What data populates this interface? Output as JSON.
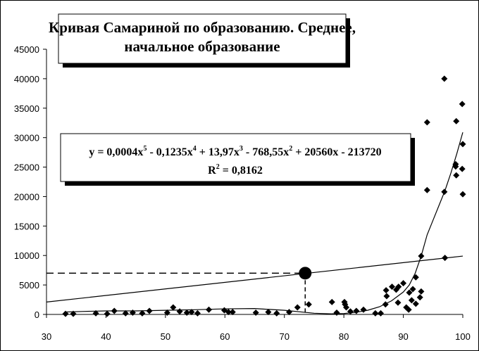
{
  "chart_data": {
    "type": "scatter",
    "title": [
      "Кривая Самариной по образованию. Среднее,",
      "начальное образование"
    ],
    "equation": [
      "y = 0,0004x",
      "5",
      " - 0,1235x",
      "4",
      " + 13,97x",
      "3",
      " - 768,55x",
      "2",
      " + 20560x - 213720"
    ],
    "r2": [
      "R",
      "2",
      " = 0,8162"
    ],
    "xlim": [
      30,
      100
    ],
    "xticks": [
      30,
      40,
      50,
      60,
      70,
      80,
      90,
      100
    ],
    "ylim": [
      0,
      45000
    ],
    "yticks": [
      0,
      5000,
      10000,
      15000,
      20000,
      25000,
      30000,
      35000,
      40000,
      45000
    ],
    "series": [
      {
        "type": "scatter",
        "color": "#000000",
        "x": [
          33.2,
          34.5,
          38.3,
          40.2,
          41.4,
          43.3,
          44.5,
          46.1,
          47.3,
          50.3,
          51.3,
          52.4,
          53.6,
          54.4,
          55.4,
          57.3,
          59.9,
          60.6,
          61.3,
          65.2,
          67.3,
          68.7,
          70.8,
          72.2,
          74.1,
          78,
          78.8,
          80.1,
          80.2,
          80.4,
          81.1,
          82.1,
          83.3,
          85.3,
          86.2,
          87,
          87.1,
          87.2,
          88.1,
          88.8,
          89.2,
          89.1,
          90,
          90.5,
          90.9,
          91,
          91.4,
          91.6,
          92.1,
          92.1,
          92.8,
          93,
          93,
          94,
          94,
          96.9,
          96.9,
          97,
          98.9,
          98.8,
          98.8,
          98.9,
          99.9,
          100,
          99.9,
          100
        ],
        "values": [
          100,
          100,
          200,
          100,
          600,
          200,
          300,
          200,
          600,
          300,
          1200,
          500,
          300,
          400,
          200,
          800,
          700,
          400,
          400,
          300,
          400,
          200,
          400,
          1200,
          1700,
          2100,
          300,
          2100,
          1700,
          1200,
          500,
          600,
          800,
          200,
          200,
          1700,
          4100,
          3100,
          4700,
          4200,
          4700,
          2000,
          5300,
          1200,
          800,
          3700,
          2400,
          4300,
          6300,
          1800,
          2900,
          3900,
          9900,
          32600,
          21100,
          40000,
          20800,
          9600,
          32800,
          25500,
          25100,
          23600,
          35700,
          28900,
          24700,
          20400
        ]
      },
      {
        "type": "line",
        "color": "#000000",
        "x": [
          33,
          36,
          40,
          45,
          50,
          55,
          60,
          65,
          70,
          75,
          78,
          80,
          82,
          84,
          86,
          88,
          90,
          91,
          92,
          93,
          94,
          95,
          96,
          97,
          98,
          99,
          100
        ],
        "values": [
          400,
          500,
          600,
          600,
          700,
          800,
          950,
          1000,
          700,
          200,
          100,
          150,
          350,
          700,
          1300,
          2300,
          3800,
          5000,
          7000,
          9900,
          13500,
          16000,
          18500,
          21000,
          24000,
          27300,
          30900
        ]
      },
      {
        "type": "line",
        "color": "#000000",
        "x": [
          30,
          100
        ],
        "values": [
          2100,
          9900
        ]
      }
    ],
    "highlight": {
      "x": 73.5,
      "y": 7000
    }
  }
}
